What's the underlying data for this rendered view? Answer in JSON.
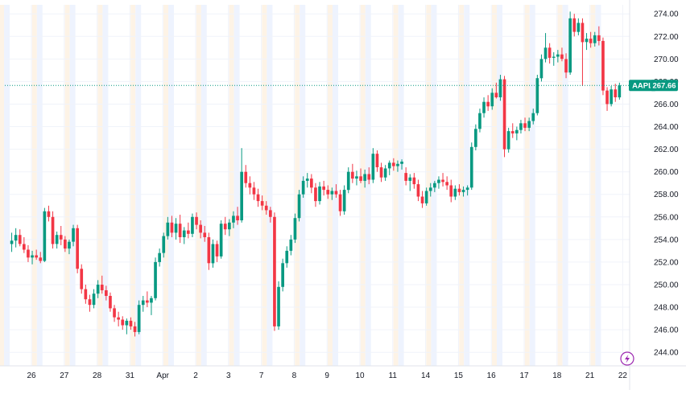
{
  "colors": {
    "up": "#089981",
    "down": "#f23645",
    "grid": "#f0f3fa",
    "session_pre": "#eef3fe",
    "session_post": "#fdf3e6",
    "price_line": "#089981",
    "axis_text": "#131722",
    "lightning": "#9c27b0"
  },
  "icons": {
    "lightning": "lightning-icon"
  },
  "chart_data": {
    "type": "candlestick",
    "symbol": "AAPL",
    "last_price": 267.66,
    "last_price_label": "267.66",
    "ylim": [
      242.8,
      274.8
    ],
    "y_ticks": [
      "244.00",
      "246.00",
      "248.00",
      "250.00",
      "252.00",
      "254.00",
      "256.00",
      "258.00",
      "260.00",
      "262.00",
      "264.00",
      "266.00",
      "268.00",
      "270.00",
      "272.00",
      "274.00"
    ],
    "x_ticks": [
      "26",
      "27",
      "28",
      "31",
      "Apr",
      "2",
      "3",
      "7",
      "8",
      "9",
      "10",
      "11",
      "14",
      "15",
      "16",
      "17",
      "18",
      "21",
      "22"
    ],
    "days": [
      {
        "label": "26",
        "ohlc": [
          [
            253.6,
            254.6,
            252.9,
            253.9
          ],
          [
            253.9,
            255.0,
            253.3,
            254.4
          ],
          [
            254.4,
            254.9,
            253.4,
            253.6
          ],
          [
            253.6,
            254.2,
            252.8,
            253.1
          ],
          [
            253.1,
            253.5,
            252.0,
            252.4
          ],
          [
            252.4,
            253.0,
            251.8,
            252.6
          ],
          [
            252.6,
            253.1,
            252.2,
            252.4
          ],
          [
            252.4,
            252.9,
            251.9,
            252.1
          ]
        ]
      },
      {
        "label": "27",
        "ohlc": [
          [
            252.1,
            256.8,
            252.0,
            256.5
          ],
          [
            256.5,
            257.0,
            255.6,
            256.0
          ],
          [
            256.0,
            256.5,
            253.2,
            253.6
          ],
          [
            253.6,
            254.7,
            253.2,
            254.4
          ],
          [
            254.4,
            255.2,
            253.5,
            254.0
          ],
          [
            254.0,
            254.3,
            252.9,
            253.2
          ],
          [
            253.2,
            254.0,
            252.7,
            253.8
          ],
          [
            253.8,
            255.3,
            253.4,
            255.0
          ]
        ]
      },
      {
        "label": "28",
        "ohlc": [
          [
            255.0,
            255.3,
            251.0,
            251.4
          ],
          [
            251.4,
            251.8,
            249.2,
            249.6
          ],
          [
            249.6,
            250.0,
            248.3,
            248.7
          ],
          [
            248.7,
            249.1,
            247.6,
            248.2
          ],
          [
            248.2,
            249.6,
            247.9,
            249.2
          ],
          [
            249.2,
            250.4,
            248.8,
            250.0
          ],
          [
            250.0,
            250.8,
            249.2,
            249.5
          ],
          [
            249.5,
            249.9,
            248.6,
            249.0
          ]
        ]
      },
      {
        "label": "31",
        "ohlc": [
          [
            249.0,
            249.3,
            247.6,
            247.9
          ],
          [
            247.9,
            248.2,
            246.7,
            247.1
          ],
          [
            247.1,
            247.6,
            246.3,
            246.9
          ],
          [
            246.9,
            247.2,
            246.0,
            246.4
          ],
          [
            246.4,
            247.0,
            245.6,
            246.8
          ],
          [
            246.8,
            247.1,
            246.0,
            246.3
          ],
          [
            246.3,
            246.7,
            245.4,
            245.8
          ],
          [
            245.8,
            248.6,
            245.6,
            248.2
          ]
        ]
      },
      {
        "label": "Apr",
        "ohlc": [
          [
            248.2,
            249.0,
            247.6,
            248.6
          ],
          [
            248.6,
            249.4,
            248.0,
            248.4
          ],
          [
            248.4,
            249.0,
            247.3,
            248.8
          ],
          [
            248.8,
            252.4,
            248.6,
            252.0
          ],
          [
            252.0,
            253.2,
            251.6,
            252.8
          ],
          [
            252.8,
            254.6,
            252.4,
            254.3
          ],
          [
            254.3,
            256.0,
            254.0,
            255.5
          ],
          [
            255.5,
            256.1,
            254.2,
            254.6
          ]
        ]
      },
      {
        "label": "2",
        "ohlc": [
          [
            254.6,
            255.9,
            254.0,
            255.4
          ],
          [
            255.4,
            256.2,
            253.7,
            254.2
          ],
          [
            254.2,
            255.1,
            253.6,
            254.8
          ],
          [
            254.8,
            255.5,
            254.1,
            254.5
          ],
          [
            254.5,
            256.3,
            254.2,
            256.0
          ],
          [
            256.0,
            256.4,
            254.9,
            255.3
          ],
          [
            255.3,
            255.7,
            254.1,
            254.6
          ],
          [
            254.6,
            255.2,
            253.8,
            254.2
          ]
        ]
      },
      {
        "label": "3",
        "ohlc": [
          [
            254.2,
            254.6,
            251.3,
            251.9
          ],
          [
            251.9,
            254.0,
            251.5,
            253.6
          ],
          [
            253.6,
            253.9,
            252.0,
            252.5
          ],
          [
            252.5,
            255.7,
            252.3,
            255.4
          ],
          [
            255.4,
            256.0,
            254.4,
            254.9
          ],
          [
            254.9,
            255.8,
            254.3,
            255.5
          ],
          [
            255.5,
            256.5,
            255.0,
            256.1
          ],
          [
            256.1,
            256.9,
            255.3,
            255.7
          ]
        ]
      },
      {
        "label": "7",
        "ohlc": [
          [
            255.7,
            262.1,
            255.5,
            260.0
          ],
          [
            260.0,
            260.6,
            258.6,
            259.0
          ],
          [
            259.0,
            259.6,
            258.0,
            258.6
          ],
          [
            258.6,
            259.1,
            257.5,
            258.0
          ],
          [
            258.0,
            258.5,
            256.9,
            257.4
          ],
          [
            257.4,
            257.9,
            256.6,
            257.0
          ],
          [
            257.0,
            257.4,
            256.2,
            256.6
          ],
          [
            256.6,
            256.9,
            255.5,
            256.0
          ]
        ]
      },
      {
        "label": "8",
        "ohlc": [
          [
            256.0,
            256.4,
            245.9,
            246.3
          ],
          [
            246.3,
            250.3,
            246.0,
            249.8
          ],
          [
            249.8,
            252.3,
            249.4,
            251.9
          ],
          [
            251.9,
            253.4,
            251.5,
            253.0
          ],
          [
            253.0,
            254.4,
            252.6,
            254.0
          ],
          [
            254.0,
            256.3,
            253.7,
            255.9
          ],
          [
            255.9,
            258.4,
            255.6,
            258.0
          ],
          [
            258.0,
            259.6,
            257.7,
            259.2
          ]
        ]
      },
      {
        "label": "9",
        "ohlc": [
          [
            259.2,
            259.9,
            258.6,
            259.4
          ],
          [
            259.4,
            259.8,
            258.1,
            258.6
          ],
          [
            258.6,
            259.0,
            256.9,
            257.4
          ],
          [
            257.4,
            259.1,
            257.1,
            258.7
          ],
          [
            258.7,
            259.2,
            257.9,
            258.4
          ],
          [
            258.4,
            258.8,
            257.6,
            258.0
          ],
          [
            258.0,
            258.6,
            257.5,
            258.3
          ],
          [
            258.3,
            258.9,
            257.7,
            258.0
          ]
        ]
      },
      {
        "label": "10",
        "ohlc": [
          [
            258.0,
            258.4,
            256.1,
            256.5
          ],
          [
            256.5,
            258.8,
            256.2,
            258.4
          ],
          [
            258.4,
            260.4,
            258.1,
            260.0
          ],
          [
            260.0,
            260.7,
            259.0,
            259.4
          ],
          [
            259.4,
            260.1,
            258.8,
            259.6
          ],
          [
            259.6,
            260.3,
            259.0,
            259.2
          ],
          [
            259.2,
            260.2,
            258.6,
            259.8
          ],
          [
            259.8,
            260.4,
            258.9,
            259.3
          ]
        ]
      },
      {
        "label": "11",
        "ohlc": [
          [
            259.3,
            262.1,
            259.0,
            261.6
          ],
          [
            261.6,
            261.9,
            260.0,
            260.4
          ],
          [
            260.4,
            260.8,
            259.1,
            259.5
          ],
          [
            259.5,
            260.6,
            259.2,
            260.3
          ],
          [
            260.3,
            261.0,
            259.7,
            260.8
          ],
          [
            260.8,
            261.2,
            260.1,
            260.5
          ],
          [
            260.5,
            261.0,
            260.0,
            260.7
          ],
          [
            260.7,
            261.1,
            260.2,
            260.9
          ]
        ]
      },
      {
        "label": "14",
        "ohlc": [
          [
            259.9,
            260.4,
            258.8,
            259.2
          ],
          [
            259.2,
            259.8,
            258.3,
            259.5
          ],
          [
            259.5,
            259.9,
            258.5,
            258.9
          ],
          [
            258.9,
            259.3,
            257.4,
            257.8
          ],
          [
            257.8,
            258.3,
            256.8,
            257.2
          ],
          [
            257.2,
            258.6,
            257.0,
            258.3
          ],
          [
            258.3,
            259.0,
            257.8,
            258.6
          ],
          [
            258.6,
            259.2,
            258.2,
            259.0
          ]
        ]
      },
      {
        "label": "15",
        "ohlc": [
          [
            259.0,
            259.6,
            258.5,
            259.3
          ],
          [
            259.3,
            259.9,
            258.7,
            259.1
          ],
          [
            259.1,
            259.6,
            258.4,
            258.8
          ],
          [
            258.8,
            259.3,
            257.3,
            257.8
          ],
          [
            257.8,
            258.8,
            257.5,
            258.5
          ],
          [
            258.5,
            258.9,
            257.9,
            258.2
          ],
          [
            258.2,
            258.7,
            257.8,
            258.4
          ],
          [
            258.4,
            258.8,
            257.9,
            258.6
          ]
        ]
      },
      {
        "label": "16",
        "ohlc": [
          [
            258.6,
            262.6,
            258.4,
            262.2
          ],
          [
            262.2,
            264.2,
            261.9,
            263.8
          ],
          [
            263.8,
            265.6,
            263.5,
            265.2
          ],
          [
            265.2,
            266.6,
            264.8,
            266.2
          ],
          [
            266.2,
            266.8,
            265.4,
            265.8
          ],
          [
            265.8,
            267.4,
            265.5,
            267.0
          ],
          [
            267.0,
            267.9,
            266.5,
            266.6
          ],
          [
            266.6,
            268.6,
            266.3,
            268.2
          ]
        ]
      },
      {
        "label": "17",
        "ohlc": [
          [
            268.2,
            268.5,
            261.3,
            262.0
          ],
          [
            262.0,
            263.9,
            261.7,
            263.6
          ],
          [
            263.6,
            264.3,
            263.0,
            263.4
          ],
          [
            263.4,
            264.0,
            262.8,
            263.7
          ],
          [
            263.7,
            264.6,
            263.4,
            264.3
          ],
          [
            264.3,
            264.8,
            263.6,
            263.9
          ],
          [
            263.9,
            264.8,
            263.6,
            264.5
          ],
          [
            264.5,
            265.6,
            264.2,
            265.2
          ]
        ]
      },
      {
        "label": "18",
        "ohlc": [
          [
            265.2,
            268.6,
            265.0,
            268.3
          ],
          [
            268.3,
            270.4,
            268.0,
            270.0
          ],
          [
            270.0,
            272.3,
            269.7,
            271.0
          ],
          [
            271.0,
            271.4,
            269.6,
            270.1
          ],
          [
            270.1,
            270.6,
            269.4,
            270.2
          ],
          [
            270.2,
            270.8,
            269.7,
            270.4
          ],
          [
            270.4,
            271.0,
            269.8,
            270.0
          ],
          [
            270.0,
            270.5,
            268.3,
            268.8
          ]
        ]
      },
      {
        "label": "21",
        "ohlc": [
          [
            268.8,
            274.2,
            268.6,
            273.6
          ],
          [
            273.6,
            274.0,
            272.0,
            272.4
          ],
          [
            272.4,
            273.6,
            272.1,
            273.2
          ],
          [
            273.2,
            273.6,
            267.6,
            271.5
          ],
          [
            271.5,
            272.3,
            270.8,
            271.8
          ],
          [
            271.8,
            272.4,
            271.0,
            271.4
          ],
          [
            271.4,
            272.4,
            271.1,
            272.1
          ],
          [
            272.1,
            272.9,
            271.2,
            271.6
          ]
        ]
      },
      {
        "label": "22",
        "ohlc": [
          [
            271.6,
            271.9,
            266.8,
            267.2
          ],
          [
            267.2,
            267.5,
            265.4,
            266.0
          ],
          [
            266.0,
            267.6,
            265.8,
            267.3
          ],
          [
            267.3,
            267.8,
            266.2,
            266.6
          ],
          [
            266.6,
            267.9,
            266.4,
            267.66
          ]
        ]
      }
    ]
  }
}
